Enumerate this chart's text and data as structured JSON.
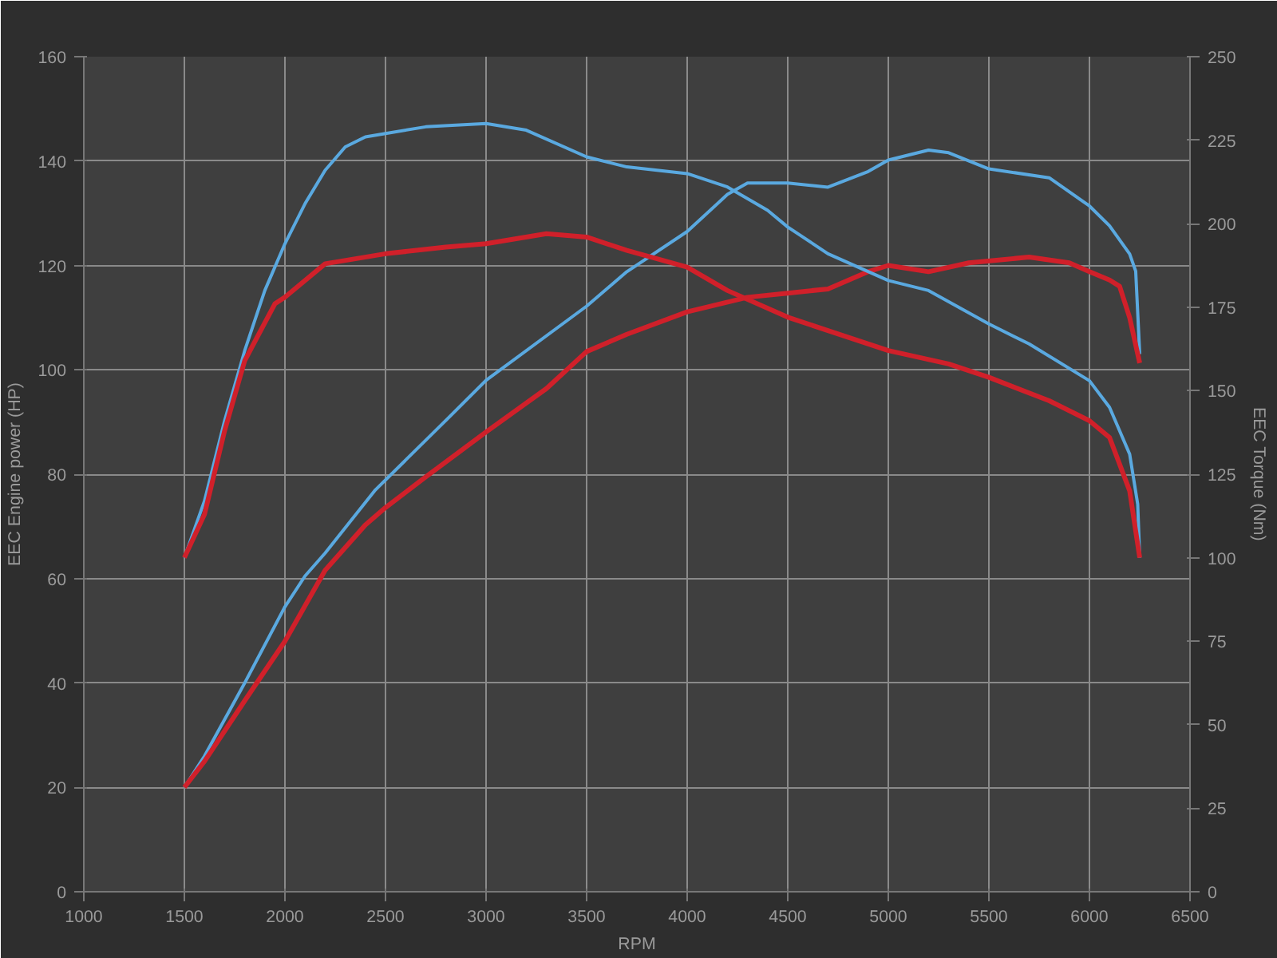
{
  "chart_data": {
    "type": "line",
    "xlabel": "RPM",
    "ylabel": "EEC Engine power (HP)",
    "y2label": "EEC Torque (Nm)",
    "xlim": [
      1000,
      6500
    ],
    "xticks": [
      1000,
      1500,
      2000,
      2500,
      3000,
      3500,
      4000,
      4500,
      5000,
      5500,
      6000,
      6500
    ],
    "ylim": [
      0,
      160
    ],
    "yticks": [
      0,
      20,
      40,
      60,
      80,
      100,
      120,
      140,
      160
    ],
    "y2lim": [
      0,
      250
    ],
    "y2ticks": [
      0,
      25,
      50,
      75,
      100,
      125,
      150,
      175,
      200,
      225,
      250
    ],
    "grid": true,
    "marker": "none",
    "line_style": "solid",
    "series": [
      {
        "color": "#5aa9e0",
        "x": [
          1500,
          1600,
          1800,
          2000,
          2100,
          2200,
          2450,
          2800,
          3000,
          3500,
          3700,
          4000,
          4200,
          4300,
          4500,
          4700,
          4900,
          5000,
          5200,
          5300,
          5500,
          5800,
          6000,
          6100,
          6200,
          6230,
          6250
        ],
        "values": [
          20,
          26,
          40,
          54.6,
          60.5,
          64.9,
          77,
          90.3,
          98,
          112.2,
          118.8,
          126.5,
          133.6,
          135.8,
          135.8,
          135,
          138,
          140.2,
          142.1,
          141.6,
          138.5,
          136.8,
          131.4,
          127.6,
          122.2,
          118.9,
          103
        ]
      },
      {
        "color": "#d0202a",
        "x": [
          1500,
          1600,
          1800,
          2000,
          2200,
          2400,
          2500,
          2700,
          3000,
          3300,
          3500,
          3700,
          4000,
          4300,
          4500,
          4700,
          4900,
          5000,
          5200,
          5400,
          5700,
          5900,
          6000,
          6100,
          6150,
          6200,
          6250
        ],
        "values": [
          20,
          25,
          36.6,
          48,
          61.6,
          70.3,
          73.6,
          79.5,
          88.1,
          96.4,
          103.5,
          106.8,
          111.1,
          113.9,
          114.7,
          115.5,
          118.8,
          120,
          118.8,
          120.5,
          121.6,
          120.5,
          118.8,
          117.2,
          116,
          110,
          101.3
        ]
      },
      {
        "color": "#5aa9e0",
        "axis": "y2",
        "x": [
          1500,
          1600,
          1700,
          1800,
          1900,
          2000,
          2100,
          2200,
          2300,
          2400,
          2500,
          2700,
          3000,
          3200,
          3500,
          3700,
          4000,
          4200,
          4400,
          4500,
          4700,
          5000,
          5200,
          5500,
          5700,
          6000,
          6100,
          6200,
          6240,
          6250
        ],
        "values": [
          100,
          117,
          141,
          162,
          180,
          194,
          206,
          216,
          223,
          226,
          227,
          229,
          230,
          228,
          220,
          217,
          215,
          211,
          204,
          199,
          191,
          183,
          180,
          170,
          164,
          153,
          145,
          131,
          116,
          100
        ]
      },
      {
        "color": "#d0202a",
        "axis": "y2",
        "x": [
          1500,
          1600,
          1700,
          1800,
          1950,
          2000,
          2200,
          2500,
          2800,
          3000,
          3300,
          3500,
          3700,
          4000,
          4200,
          4500,
          4700,
          5000,
          5300,
          5500,
          5800,
          6000,
          6100,
          6200,
          6250
        ],
        "values": [
          100,
          113,
          138,
          159,
          176,
          178,
          188,
          191,
          193,
          194,
          197,
          196,
          192,
          187,
          180,
          172,
          168,
          162,
          158,
          154,
          147,
          141,
          136,
          120,
          100
        ]
      }
    ]
  }
}
